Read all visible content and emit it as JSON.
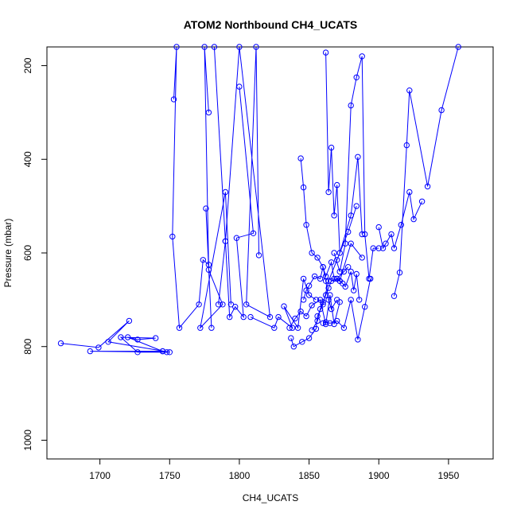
{
  "chart_data": {
    "type": "line",
    "title": "ATOM2 Northbound CH4_UCATS",
    "xlabel": "CH4_UCATS",
    "ylabel": "Pressure (mbar)",
    "xlim": [
      1662,
      1982
    ],
    "ylim": [
      1040,
      160
    ],
    "y_reversed": true,
    "x_ticks": [
      1700,
      1750,
      1800,
      1850,
      1900,
      1950
    ],
    "y_ticks": [
      200,
      400,
      600,
      800,
      1000
    ],
    "grid": false,
    "legend": "none",
    "marker": "open-circle",
    "color": "#0000ff",
    "series": [
      {
        "x": [
          1672,
          1699,
          1721,
          1706,
          1750,
          1693,
          1745
        ],
        "y": [
          793,
          802,
          745,
          790,
          812,
          810,
          810
        ]
      },
      {
        "x": [
          1745,
          1720,
          1727,
          1740,
          1715,
          1727,
          1748
        ],
        "y": [
          810,
          780,
          785,
          782,
          780,
          812,
          812
        ]
      },
      {
        "x": [
          1753,
          1755,
          1752,
          1757,
          1771,
          1774,
          1778,
          1776,
          1780
        ],
        "y": [
          272,
          160,
          565,
          760,
          710,
          615,
          625,
          505,
          760
        ]
      },
      {
        "x": [
          1778,
          1775,
          1778,
          1788,
          1772,
          1790,
          1794
        ],
        "y": [
          300,
          160,
          636,
          710,
          760,
          470,
          710
        ]
      },
      {
        "x": [
          1800,
          1810,
          1798,
          1803,
          1797,
          1793,
          1790,
          1785
        ],
        "y": [
          245,
          558,
          568,
          737,
          715,
          737,
          575,
          710
        ]
      },
      {
        "x": [
          1814,
          1812,
          1805,
          1822,
          1800,
          1790,
          1782
        ],
        "y": [
          605,
          160,
          710,
          737,
          160,
          575,
          160
        ]
      },
      {
        "x": [
          1808,
          1825,
          1828,
          1838,
          1832,
          1842,
          1846,
          1850,
          1855
        ],
        "y": [
          737,
          760,
          737,
          760,
          714,
          760,
          655,
          690,
          700
        ]
      },
      {
        "x": [
          1836,
          1840,
          1844,
          1848,
          1852,
          1858,
          1862,
          1865,
          1868,
          1872
        ],
        "y": [
          760,
          740,
          725,
          735,
          712,
          700,
          752,
          690,
          752,
          705
        ]
      },
      {
        "x": [
          1837,
          1839,
          1845,
          1850,
          1855,
          1856,
          1860,
          1864,
          1870,
          1878,
          1884
        ],
        "y": [
          782,
          800,
          790,
          782,
          762,
          735,
          710,
          660,
          615,
          555,
          500
        ]
      },
      {
        "x": [
          1844,
          1846,
          1848,
          1852,
          1856,
          1860,
          1862,
          1864,
          1866,
          1870
        ],
        "y": [
          398,
          460,
          540,
          600,
          610,
          630,
          660,
          700,
          720,
          700
        ]
      },
      {
        "x": [
          1862,
          1864,
          1866,
          1868,
          1870,
          1872,
          1880,
          1885,
          1888
        ],
        "y": [
          172,
          470,
          375,
          520,
          455,
          600,
          520,
          395,
          560
        ]
      },
      {
        "x": [
          1852,
          1856,
          1858,
          1860,
          1862,
          1864,
          1866,
          1870,
          1875,
          1878
        ],
        "y": [
          765,
          745,
          720,
          705,
          690,
          675,
          660,
          655,
          640,
          630
        ]
      },
      {
        "x": [
          1860,
          1862,
          1865,
          1870,
          1875,
          1880,
          1885,
          1890,
          1894
        ],
        "y": [
          750,
          748,
          750,
          745,
          760,
          700,
          785,
          715,
          655
        ]
      },
      {
        "x": [
          1868,
          1872,
          1876,
          1880,
          1884,
          1888,
          1890,
          1893,
          1896,
          1900
        ],
        "y": [
          600,
          640,
          580,
          285,
          225,
          180,
          560,
          655,
          590,
          590
        ]
      },
      {
        "x": [
          1900,
          1903,
          1905,
          1909,
          1911,
          1916,
          1922,
          1925,
          1931
        ],
        "y": [
          545,
          590,
          580,
          560,
          590,
          540,
          470,
          528,
          490
        ]
      },
      {
        "x": [
          1911,
          1915,
          1920,
          1922,
          1935,
          1945,
          1957
        ],
        "y": [
          692,
          642,
          370,
          253,
          458,
          295,
          160
        ]
      },
      {
        "x": [
          1870,
          1872,
          1874,
          1876,
          1880,
          1882,
          1884,
          1886
        ],
        "y": [
          655,
          660,
          665,
          672,
          640,
          680,
          645,
          700
        ]
      },
      {
        "x": [
          1846,
          1848,
          1850,
          1854,
          1858,
          1860,
          1862,
          1866,
          1868,
          1872,
          1880,
          1888
        ],
        "y": [
          700,
          680,
          670,
          650,
          655,
          630,
          650,
          620,
          655,
          660,
          580,
          610
        ]
      }
    ]
  }
}
